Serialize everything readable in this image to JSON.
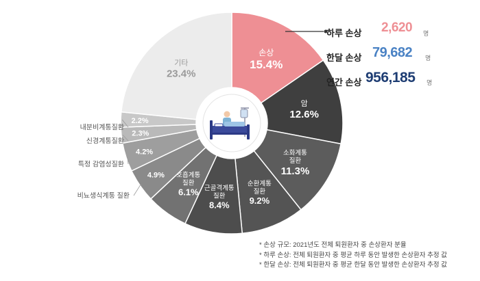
{
  "chart_data": {
    "type": "pie",
    "variant": "donut",
    "slices": [
      {
        "label": "손상",
        "value": 15.4,
        "unit": "%",
        "color": "#ee8f94",
        "label_color": "#ffffff"
      },
      {
        "label": "암",
        "value": 12.6,
        "unit": "%",
        "color": "#3f3f3f",
        "label_color": "#ffffff"
      },
      {
        "label": "소화계통 질환",
        "value": 11.3,
        "unit": "%",
        "color": "#5c5c5c",
        "label_color": "#ffffff"
      },
      {
        "label": "순환계통 질환",
        "value": 9.2,
        "unit": "%",
        "color": "#545454",
        "label_color": "#ffffff"
      },
      {
        "label": "근골격계통 질환",
        "value": 8.4,
        "unit": "%",
        "color": "#4d4d4d",
        "label_color": "#ffffff"
      },
      {
        "label": "호흡계통 질환",
        "value": 6.1,
        "unit": "%",
        "color": "#727272",
        "label_color": "#ffffff"
      },
      {
        "label": "비뇨생식계통 질환",
        "value": 4.9,
        "unit": "%",
        "color": "#8a8a8a",
        "label_color": "#ffffff"
      },
      {
        "label": "특정 감염성질환",
        "value": 4.2,
        "unit": "%",
        "color": "#9e9e9e",
        "label_color": "#ffffff"
      },
      {
        "label": "신경계통질환",
        "value": 2.3,
        "unit": "%",
        "color": "#b9b9b9",
        "label_color": "#ffffff"
      },
      {
        "label": "내분비계통질환",
        "value": 2.2,
        "unit": "%",
        "color": "#c8c8c8",
        "label_color": "#ffffff"
      },
      {
        "label": "기타",
        "value": 23.4,
        "unit": "%",
        "color": "#ececec",
        "label_color": "#9a9a9a"
      }
    ],
    "center_icon": "hospital-patient-icon",
    "start_angle_deg": 0,
    "highlight_slice": "손상"
  },
  "injury_stats": [
    {
      "label": "하루 손상",
      "value": "2,620",
      "unit": "명",
      "color": "#ee8f94"
    },
    {
      "label": "한달 손상",
      "value": "79,682",
      "unit": "명",
      "color": "#4a82c4"
    },
    {
      "label": "연간 손상",
      "value": "956,185",
      "unit": "명",
      "color": "#1e3d73"
    }
  ],
  "footnotes": [
    "* 손상 규모: 2021년도 전체 퇴원환자 중 손상환자 분율",
    "* 하루 손상: 전체 퇴원환자 중 평균 하루 동안 발생한 손상환자 추정 값",
    "* 한달 손상: 전체 퇴원환자 중 평균 한달 동안 발생한 손상환자 추정 값"
  ]
}
